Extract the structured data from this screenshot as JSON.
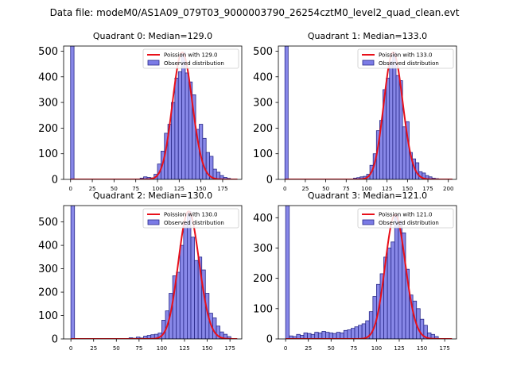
{
  "figure": {
    "suptitle": "Data file: modeM0/AS1A09_079T03_9000003790_26254cztM0_level2_quad_clean.evt"
  },
  "colors": {
    "bar_fill": "#7b7be6",
    "bar_edge": "#2a2a8a",
    "poisson_line": "#e8101a"
  },
  "legend": {
    "poisson_prefix": "Poission with ",
    "observed_label": "Observed distribution"
  },
  "chart_data": [
    {
      "type": "bar",
      "title": "Quadrant 0: Median=129.0",
      "median": 129.0,
      "poisson_label": "Poission with 129.0",
      "legend_position": "top-right",
      "xlim": [
        -8,
        197
      ],
      "ylim": [
        0,
        520
      ],
      "xticks": [
        0,
        25,
        50,
        75,
        100,
        125,
        150,
        175
      ],
      "yticks": [
        0,
        100,
        200,
        300,
        400,
        500
      ],
      "bin_width": 4,
      "bins": [
        {
          "x": 0,
          "y": 520
        },
        {
          "x": 80,
          "y": 5
        },
        {
          "x": 84,
          "y": 10
        },
        {
          "x": 88,
          "y": 8
        },
        {
          "x": 92,
          "y": 6
        },
        {
          "x": 96,
          "y": 20
        },
        {
          "x": 100,
          "y": 60
        },
        {
          "x": 104,
          "y": 110
        },
        {
          "x": 108,
          "y": 180
        },
        {
          "x": 112,
          "y": 215
        },
        {
          "x": 116,
          "y": 300
        },
        {
          "x": 120,
          "y": 395
        },
        {
          "x": 124,
          "y": 420
        },
        {
          "x": 128,
          "y": 495
        },
        {
          "x": 132,
          "y": 415
        },
        {
          "x": 136,
          "y": 380
        },
        {
          "x": 140,
          "y": 330
        },
        {
          "x": 144,
          "y": 195
        },
        {
          "x": 148,
          "y": 215
        },
        {
          "x": 152,
          "y": 160
        },
        {
          "x": 156,
          "y": 105
        },
        {
          "x": 160,
          "y": 90
        },
        {
          "x": 164,
          "y": 40
        },
        {
          "x": 168,
          "y": 28
        },
        {
          "x": 172,
          "y": 15
        },
        {
          "x": 176,
          "y": 8
        },
        {
          "x": 180,
          "y": 4
        }
      ]
    },
    {
      "type": "bar",
      "title": "Quadrant 1: Median=133.0",
      "median": 133.0,
      "poisson_label": "Poission with 133.0",
      "legend_position": "top-right",
      "xlim": [
        -8,
        210
      ],
      "ylim": [
        0,
        520
      ],
      "xticks": [
        0,
        25,
        50,
        75,
        100,
        125,
        150,
        175,
        200
      ],
      "yticks": [
        0,
        100,
        200,
        300,
        400,
        500
      ],
      "bin_width": 4,
      "bins": [
        {
          "x": 0,
          "y": 520
        },
        {
          "x": 84,
          "y": 5
        },
        {
          "x": 88,
          "y": 7
        },
        {
          "x": 92,
          "y": 10
        },
        {
          "x": 96,
          "y": 12
        },
        {
          "x": 100,
          "y": 20
        },
        {
          "x": 104,
          "y": 55
        },
        {
          "x": 108,
          "y": 100
        },
        {
          "x": 112,
          "y": 190
        },
        {
          "x": 116,
          "y": 230
        },
        {
          "x": 120,
          "y": 350
        },
        {
          "x": 124,
          "y": 395
        },
        {
          "x": 128,
          "y": 460
        },
        {
          "x": 132,
          "y": 495
        },
        {
          "x": 136,
          "y": 405
        },
        {
          "x": 140,
          "y": 385
        },
        {
          "x": 144,
          "y": 205
        },
        {
          "x": 148,
          "y": 225
        },
        {
          "x": 152,
          "y": 105
        },
        {
          "x": 156,
          "y": 80
        },
        {
          "x": 160,
          "y": 65
        },
        {
          "x": 164,
          "y": 30
        },
        {
          "x": 168,
          "y": 25
        },
        {
          "x": 172,
          "y": 15
        },
        {
          "x": 176,
          "y": 10
        },
        {
          "x": 180,
          "y": 5
        },
        {
          "x": 184,
          "y": 3
        }
      ]
    },
    {
      "type": "bar",
      "title": "Quadrant 2: Median=130.0",
      "median": 130.0,
      "poisson_label": "Poission with 130.0",
      "legend_position": "top-right",
      "xlim": [
        -8,
        188
      ],
      "ylim": [
        0,
        570
      ],
      "xticks": [
        0,
        25,
        50,
        75,
        100,
        125,
        150,
        175
      ],
      "yticks": [
        0,
        100,
        200,
        300,
        400,
        500
      ],
      "bin_width": 4,
      "bins": [
        {
          "x": 0,
          "y": 570
        },
        {
          "x": 64,
          "y": 5
        },
        {
          "x": 68,
          "y": 3
        },
        {
          "x": 72,
          "y": 8
        },
        {
          "x": 76,
          "y": 4
        },
        {
          "x": 80,
          "y": 12
        },
        {
          "x": 84,
          "y": 15
        },
        {
          "x": 88,
          "y": 18
        },
        {
          "x": 92,
          "y": 20
        },
        {
          "x": 96,
          "y": 25
        },
        {
          "x": 100,
          "y": 80
        },
        {
          "x": 104,
          "y": 120
        },
        {
          "x": 108,
          "y": 195
        },
        {
          "x": 112,
          "y": 270
        },
        {
          "x": 116,
          "y": 285
        },
        {
          "x": 120,
          "y": 400
        },
        {
          "x": 124,
          "y": 500
        },
        {
          "x": 128,
          "y": 545
        },
        {
          "x": 132,
          "y": 435
        },
        {
          "x": 136,
          "y": 335
        },
        {
          "x": 140,
          "y": 350
        },
        {
          "x": 144,
          "y": 295
        },
        {
          "x": 148,
          "y": 195
        },
        {
          "x": 152,
          "y": 110
        },
        {
          "x": 156,
          "y": 90
        },
        {
          "x": 160,
          "y": 55
        },
        {
          "x": 164,
          "y": 30
        },
        {
          "x": 168,
          "y": 20
        },
        {
          "x": 172,
          "y": 10
        }
      ]
    },
    {
      "type": "bar",
      "title": "Quadrant 3: Median=121.0",
      "median": 121.0,
      "poisson_label": "Poission with 121.0",
      "legend_position": "top-right",
      "xlim": [
        -8,
        188
      ],
      "ylim": [
        0,
        440
      ],
      "xticks": [
        0,
        25,
        50,
        75,
        100,
        125,
        150,
        175
      ],
      "yticks": [
        0,
        100,
        200,
        300,
        400
      ],
      "bin_width": 4,
      "bins": [
        {
          "x": 0,
          "y": 440
        },
        {
          "x": 4,
          "y": 10
        },
        {
          "x": 8,
          "y": 8
        },
        {
          "x": 12,
          "y": 15
        },
        {
          "x": 16,
          "y": 12
        },
        {
          "x": 20,
          "y": 20
        },
        {
          "x": 24,
          "y": 18
        },
        {
          "x": 28,
          "y": 15
        },
        {
          "x": 32,
          "y": 22
        },
        {
          "x": 36,
          "y": 20
        },
        {
          "x": 40,
          "y": 25
        },
        {
          "x": 44,
          "y": 22
        },
        {
          "x": 48,
          "y": 20
        },
        {
          "x": 52,
          "y": 18
        },
        {
          "x": 56,
          "y": 22
        },
        {
          "x": 60,
          "y": 20
        },
        {
          "x": 64,
          "y": 28
        },
        {
          "x": 68,
          "y": 30
        },
        {
          "x": 72,
          "y": 35
        },
        {
          "x": 76,
          "y": 40
        },
        {
          "x": 80,
          "y": 45
        },
        {
          "x": 84,
          "y": 50
        },
        {
          "x": 88,
          "y": 60
        },
        {
          "x": 92,
          "y": 90
        },
        {
          "x": 96,
          "y": 140
        },
        {
          "x": 100,
          "y": 180
        },
        {
          "x": 104,
          "y": 215
        },
        {
          "x": 108,
          "y": 270
        },
        {
          "x": 112,
          "y": 300
        },
        {
          "x": 116,
          "y": 320
        },
        {
          "x": 120,
          "y": 410
        },
        {
          "x": 124,
          "y": 390
        },
        {
          "x": 128,
          "y": 350
        },
        {
          "x": 132,
          "y": 230
        },
        {
          "x": 136,
          "y": 145
        },
        {
          "x": 140,
          "y": 125
        },
        {
          "x": 144,
          "y": 100
        },
        {
          "x": 148,
          "y": 65
        },
        {
          "x": 152,
          "y": 45
        },
        {
          "x": 156,
          "y": 20
        },
        {
          "x": 160,
          "y": 15
        },
        {
          "x": 164,
          "y": 8
        }
      ]
    }
  ]
}
